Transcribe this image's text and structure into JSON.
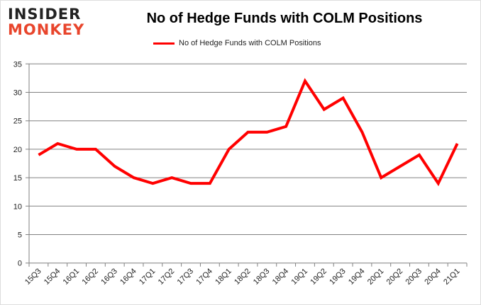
{
  "logo": {
    "line1": "INSIDER",
    "line2": "MONKEY"
  },
  "chart_data": {
    "type": "line",
    "title": "No of Hedge Funds with COLM Positions",
    "xlabel": "",
    "ylabel": "",
    "ylim": [
      0,
      35
    ],
    "yticks": [
      0,
      5,
      10,
      15,
      20,
      25,
      30,
      35
    ],
    "grid": true,
    "legend_position": "top",
    "categories": [
      "15Q3",
      "15Q4",
      "16Q1",
      "16Q2",
      "16Q3",
      "16Q4",
      "17Q1",
      "17Q2",
      "17Q3",
      "17Q4",
      "18Q1",
      "18Q2",
      "18Q3",
      "18Q4",
      "19Q1",
      "19Q2",
      "19Q3",
      "19Q4",
      "20Q1",
      "20Q2",
      "20Q3",
      "20Q4",
      "21Q1"
    ],
    "series": [
      {
        "name": "No of Hedge Funds with COLM Positions",
        "color": "#ff0000",
        "values": [
          19,
          21,
          20,
          20,
          17,
          15,
          14,
          15,
          14,
          14,
          20,
          23,
          23,
          24,
          32,
          27,
          29,
          23,
          15,
          17,
          19,
          14,
          21
        ]
      }
    ]
  }
}
